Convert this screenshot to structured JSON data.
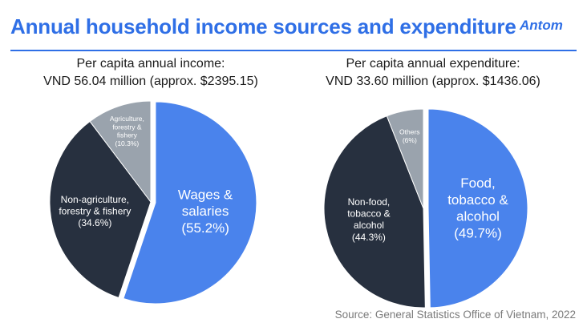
{
  "header": {
    "title": "Annual household income sources and expenditure",
    "logo_text": "Antom"
  },
  "colors": {
    "accent": "#2f6fe6",
    "slice_blue": "#4a83ec",
    "slice_dark": "#27303f",
    "slice_gray": "#9aa3ad"
  },
  "chart_data": [
    {
      "type": "pie",
      "title_line1": "Per capita annual income:",
      "title_line2": "VND 56.04 million (approx. $2395.15)",
      "slices": [
        {
          "label": [
            "Wages &",
            "salaries",
            "(55.2%)"
          ],
          "value": 55.2,
          "color": "#4a83ec",
          "exploded": true,
          "text_color": "#ffffff",
          "text_size": "large"
        },
        {
          "label": [
            "Non-agriculture,",
            "forestry & fishery",
            "(34.6%)"
          ],
          "value": 34.6,
          "color": "#27303f",
          "exploded": false,
          "text_color": "#ffffff",
          "text_size": "medium"
        },
        {
          "label": [
            "Agriculture,",
            "forestry &",
            "fishery",
            "(10.3%)"
          ],
          "value": 10.3,
          "color": "#9aa3ad",
          "exploded": false,
          "text_color": "#ffffff",
          "text_size": "small"
        }
      ]
    },
    {
      "type": "pie",
      "title_line1": "Per capita annual expenditure:",
      "title_line2": "VND 33.60 million (approx. $1436.06)",
      "slices": [
        {
          "label": [
            "Food,",
            "tobacco &",
            "alcohol",
            "(49.7%)"
          ],
          "value": 49.7,
          "color": "#4a83ec",
          "exploded": true,
          "text_color": "#ffffff",
          "text_size": "large"
        },
        {
          "label": [
            "Non-food,",
            "tobacco &",
            "alcohol",
            "(44.3%)"
          ],
          "value": 44.3,
          "color": "#27303f",
          "exploded": false,
          "text_color": "#ffffff",
          "text_size": "medium"
        },
        {
          "label": [
            "Others",
            "(6%)"
          ],
          "value": 6,
          "color": "#9aa3ad",
          "exploded": false,
          "text_color": "#ffffff",
          "text_size": "small"
        }
      ]
    }
  ],
  "footer": {
    "source": "Source: General Statistics Office of Vietnam, 2022"
  }
}
